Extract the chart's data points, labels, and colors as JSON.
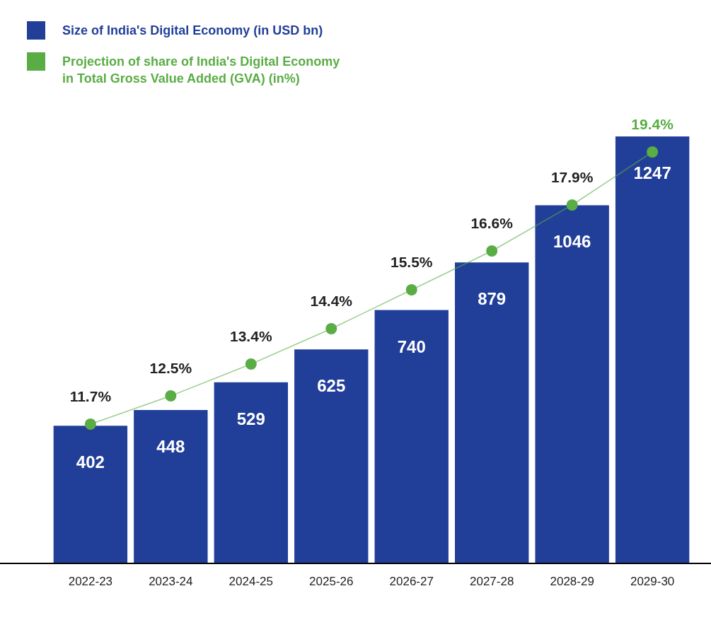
{
  "chart_data": {
    "type": "bar",
    "categories": [
      "2022-23",
      "2023-24",
      "2024-25",
      "2025-26",
      "2026-27",
      "2027-28",
      "2028-29",
      "2029-30"
    ],
    "series": [
      {
        "name": "Size of India's Digital Economy (in USD bn)",
        "color": "#213f99",
        "values": [
          402,
          448,
          529,
          625,
          740,
          879,
          1046,
          1247
        ]
      },
      {
        "name": "Projection of share of India's Digital Economy in Total Gross Value Added (GVA) (in%)",
        "type": "line",
        "axis": "y2",
        "color": "#5aad45",
        "marker": "circle",
        "values": [
          11.7,
          12.5,
          13.4,
          14.4,
          15.5,
          16.6,
          17.9,
          19.4
        ],
        "value_labels": [
          "11.7%",
          "12.5%",
          "13.4%",
          "14.4%",
          "15.5%",
          "16.6%",
          "17.9%",
          "19.4%"
        ]
      }
    ],
    "data_labels": true,
    "legend": "top left",
    "tick_labels": "x"
  }
}
